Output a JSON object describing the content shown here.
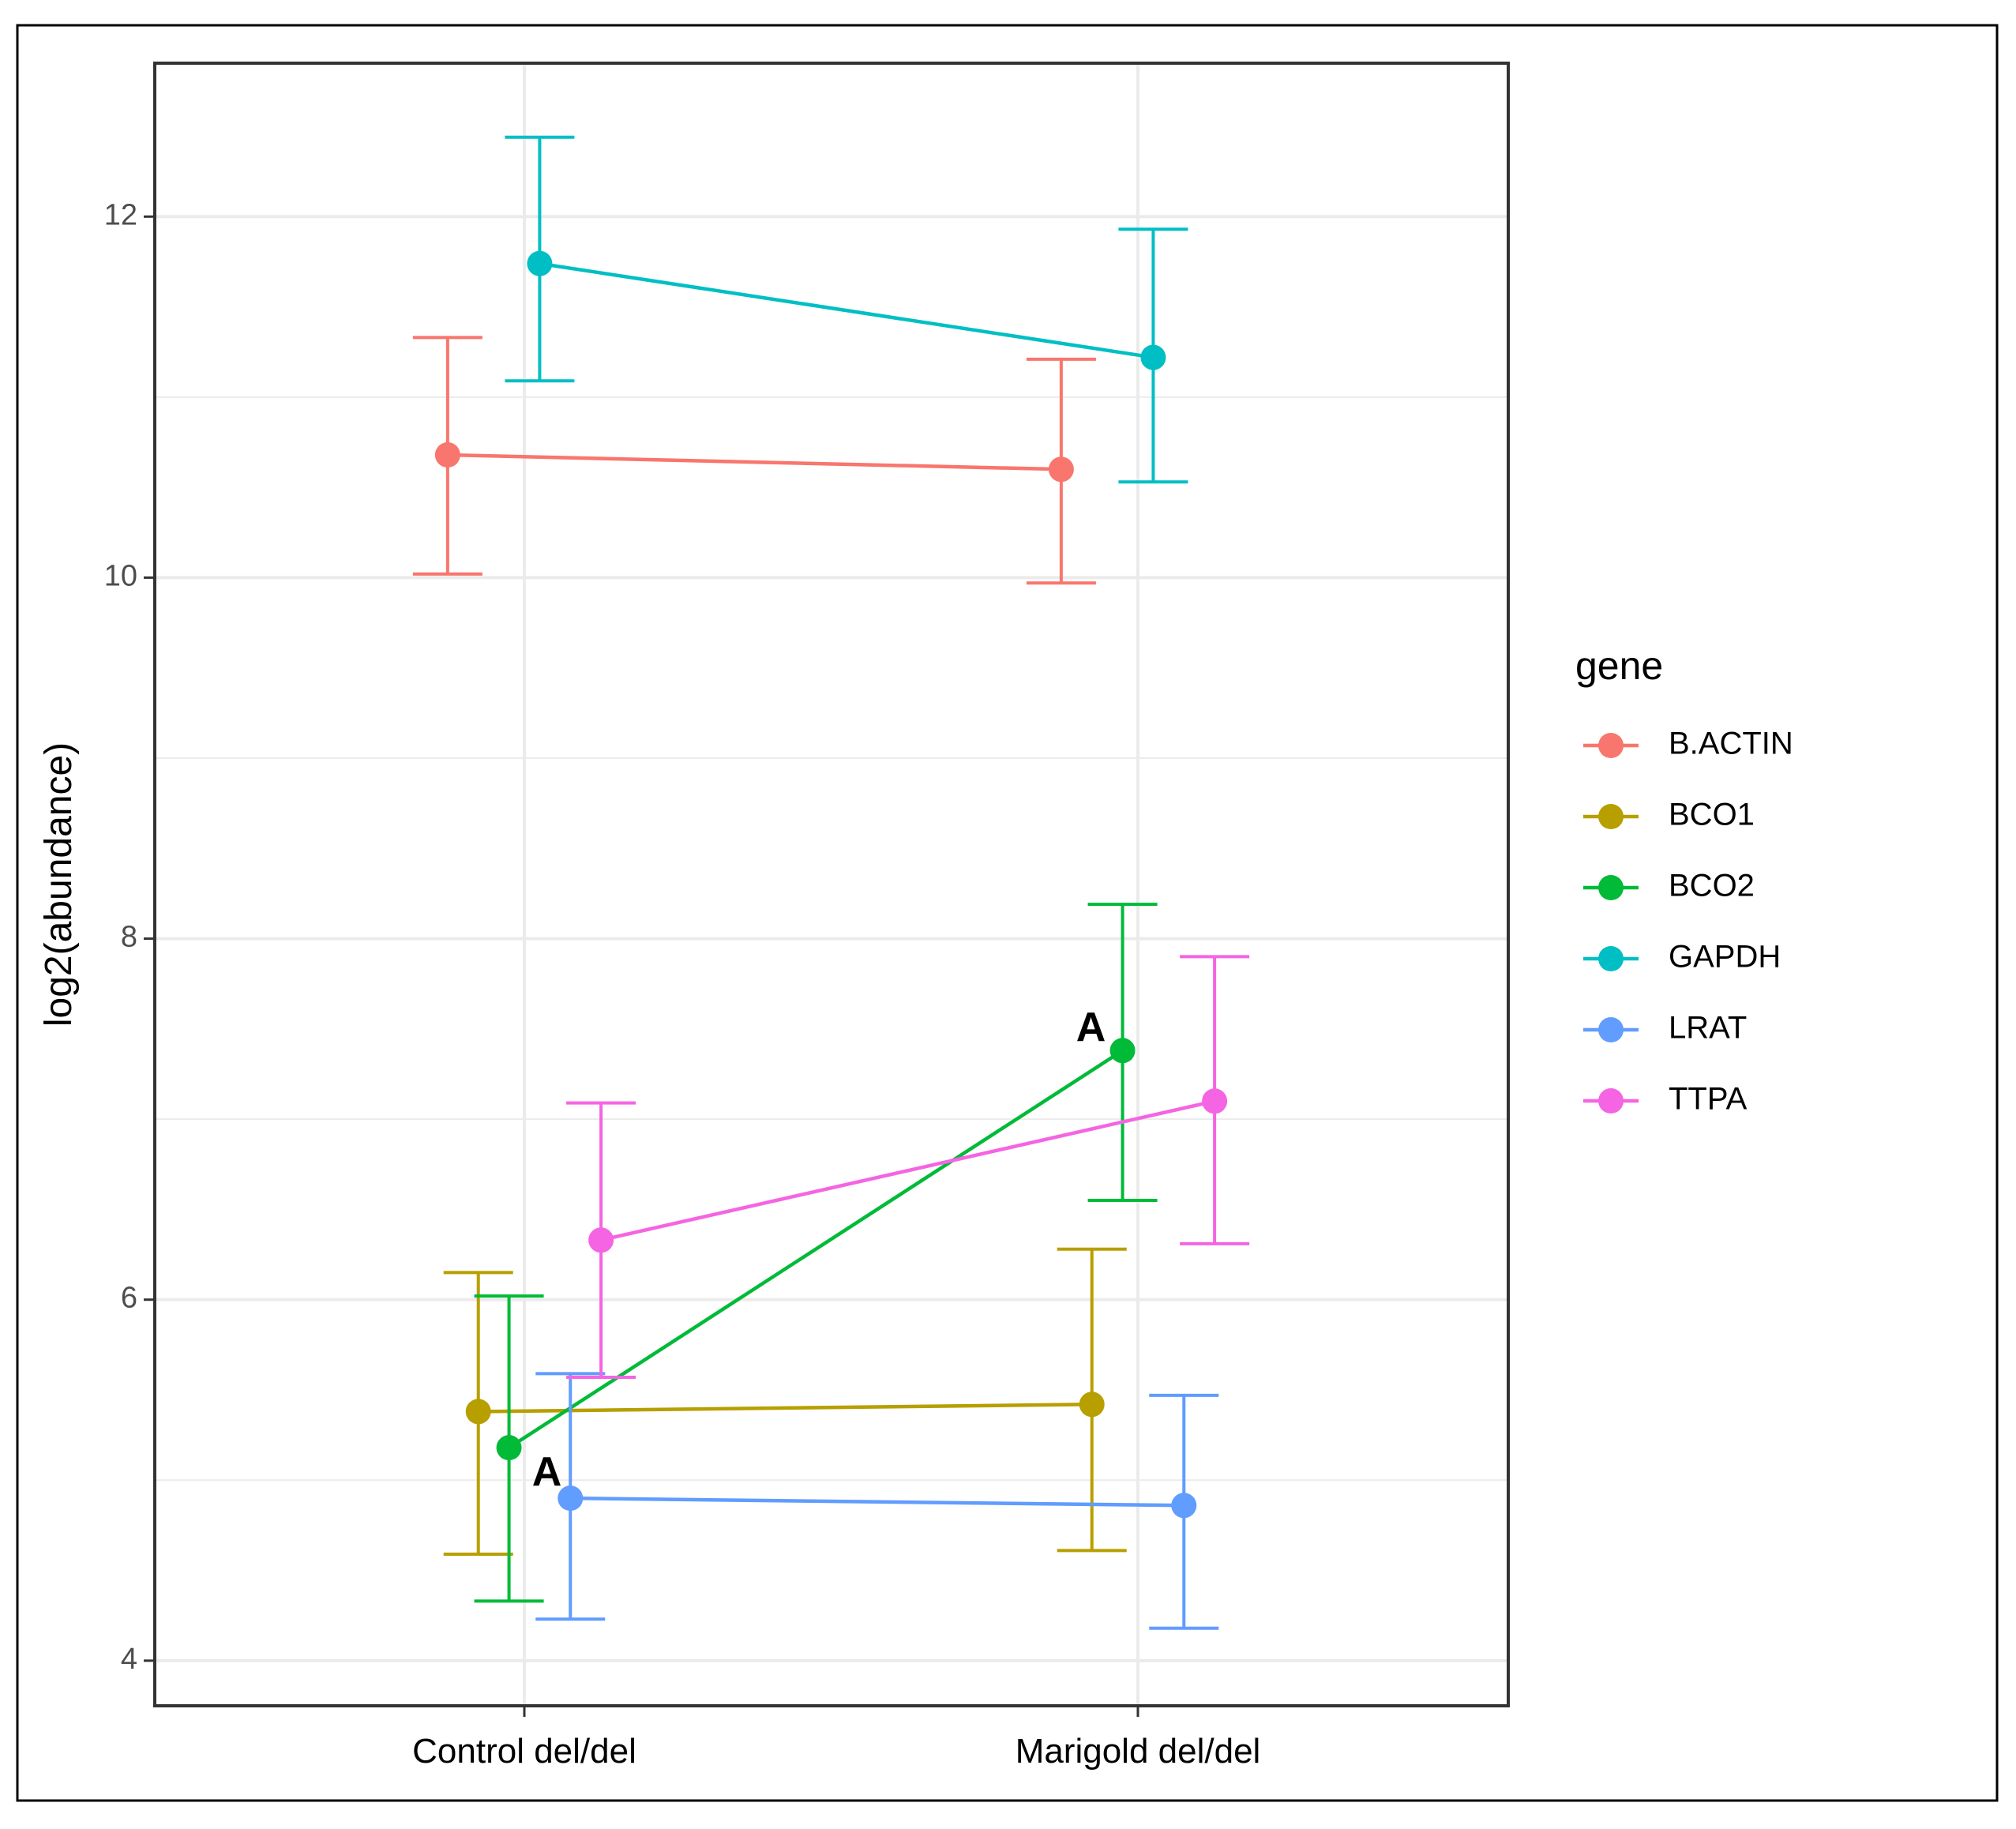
{
  "chart_data": {
    "type": "line",
    "title": "",
    "xlabel": "",
    "ylabel": "log2(abundance)",
    "categories": [
      "Control del/del",
      "Marigold del/del"
    ],
    "ylim": [
      3.75,
      12.85
    ],
    "yticks": [
      4,
      6,
      8,
      10,
      12
    ],
    "ytick_labels": [
      "4",
      "6",
      "8",
      "10",
      "12"
    ],
    "legend": {
      "title": "gene",
      "position": "right"
    },
    "series": [
      {
        "name": "B.ACTIN",
        "color": "#F8766D",
        "values": [
          10.68,
          10.6
        ],
        "lower": [
          10.02,
          9.97
        ],
        "upper": [
          11.33,
          11.21
        ],
        "dodge": -0.125
      },
      {
        "name": "BCO1",
        "color": "#B79F00",
        "values": [
          5.38,
          5.42
        ],
        "lower": [
          4.59,
          4.61
        ],
        "upper": [
          6.15,
          6.28
        ],
        "dodge": -0.075
      },
      {
        "name": "BCO2",
        "color": "#00BA38",
        "values": [
          5.18,
          7.38
        ],
        "lower": [
          4.33,
          6.55
        ],
        "upper": [
          6.02,
          8.19
        ],
        "dodge": -0.025
      },
      {
        "name": "GAPDH",
        "color": "#00BFC4",
        "values": [
          11.74,
          11.22
        ],
        "lower": [
          11.09,
          10.53
        ],
        "upper": [
          12.44,
          11.93
        ],
        "dodge": 0.025
      },
      {
        "name": "LRAT",
        "color": "#619CFF",
        "values": [
          4.9,
          4.86
        ],
        "lower": [
          4.23,
          4.18
        ],
        "upper": [
          5.59,
          5.47
        ],
        "dodge": 0.075
      },
      {
        "name": "TTPA",
        "color": "#F564E3",
        "values": [
          6.33,
          7.1
        ],
        "lower": [
          5.57,
          6.31
        ],
        "upper": [
          7.09,
          7.9
        ],
        "dodge": 0.125
      }
    ],
    "annotations": [
      {
        "text": "A",
        "series": "BCO2",
        "category": "Control del/del",
        "position": "below-right"
      },
      {
        "text": "A",
        "series": "BCO2",
        "category": "Marigold del/del",
        "position": "above-left"
      }
    ]
  }
}
